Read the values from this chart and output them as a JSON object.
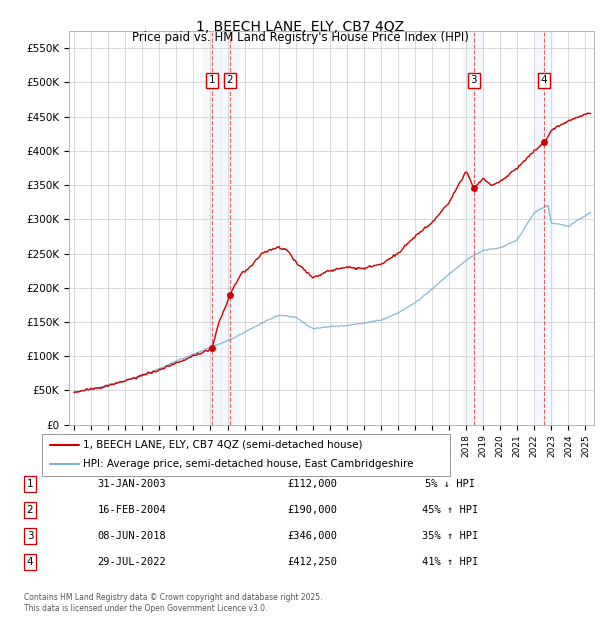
{
  "title": "1, BEECH LANE, ELY, CB7 4QZ",
  "subtitle": "Price paid vs. HM Land Registry's House Price Index (HPI)",
  "ylim": [
    0,
    575000
  ],
  "xlim_start": 1994.7,
  "xlim_end": 2025.5,
  "yticks": [
    0,
    50000,
    100000,
    150000,
    200000,
    250000,
    300000,
    350000,
    400000,
    450000,
    500000,
    550000
  ],
  "ytick_labels": [
    "£0",
    "£50K",
    "£100K",
    "£150K",
    "£200K",
    "£250K",
    "£300K",
    "£350K",
    "£400K",
    "£450K",
    "£500K",
    "£550K"
  ],
  "property_color": "#cc0000",
  "hpi_color": "#7ab0d4",
  "background_color": "#ffffff",
  "grid_color": "#cccccc",
  "sale_markers": [
    {
      "num": 1,
      "date_dec": 2003.08,
      "price": 112000,
      "label": "1"
    },
    {
      "num": 2,
      "date_dec": 2004.13,
      "price": 190000,
      "label": "2"
    },
    {
      "num": 3,
      "date_dec": 2018.44,
      "price": 346000,
      "label": "3"
    },
    {
      "num": 4,
      "date_dec": 2022.57,
      "price": 412250,
      "label": "4"
    }
  ],
  "hpi_ctrl_x": [
    1995,
    1996,
    1997,
    1998,
    1999,
    2000,
    2001,
    2002,
    2003,
    2004,
    2005,
    2006,
    2007,
    2008,
    2009,
    2010,
    2011,
    2012,
    2013,
    2014,
    2015,
    2016,
    2017,
    2018,
    2019,
    2020,
    2021,
    2022,
    2022.8,
    2023,
    2024,
    2025.3
  ],
  "hpi_ctrl_y": [
    48000,
    52000,
    57000,
    64000,
    72000,
    82000,
    93000,
    103000,
    113000,
    122000,
    135000,
    148000,
    160000,
    157000,
    140000,
    143000,
    145000,
    148000,
    153000,
    163000,
    178000,
    198000,
    220000,
    240000,
    255000,
    258000,
    270000,
    310000,
    320000,
    295000,
    290000,
    310000
  ],
  "prop_ctrl_x": [
    1995,
    1996,
    1997,
    1998,
    1999,
    2000,
    2001,
    2002,
    2003.08,
    2003.5,
    2004.0,
    2004.13,
    2004.8,
    2005.5,
    2006,
    2007,
    2007.5,
    2008,
    2009,
    2010,
    2011,
    2012,
    2013,
    2014,
    2015,
    2016,
    2017,
    2018,
    2018.44,
    2018.8,
    2019,
    2019.5,
    2020,
    2021,
    2022,
    2022.57,
    2023,
    2024,
    2025.3
  ],
  "prop_ctrl_y": [
    48000,
    52000,
    57000,
    64000,
    72000,
    80000,
    90000,
    100000,
    112000,
    150000,
    180000,
    190000,
    220000,
    235000,
    250000,
    260000,
    255000,
    238000,
    215000,
    225000,
    230000,
    228000,
    235000,
    250000,
    275000,
    295000,
    325000,
    370000,
    346000,
    355000,
    360000,
    350000,
    355000,
    375000,
    400000,
    412250,
    430000,
    445000,
    455000
  ],
  "legend_entries": [
    {
      "label": "1, BEECH LANE, ELY, CB7 4QZ (semi-detached house)",
      "color": "#cc0000"
    },
    {
      "label": "HPI: Average price, semi-detached house, East Cambridgeshire",
      "color": "#7ab0d4"
    }
  ],
  "table_rows": [
    {
      "num": "1",
      "date": "31-JAN-2003",
      "price": "£112,000",
      "hpi": "5% ↓ HPI"
    },
    {
      "num": "2",
      "date": "16-FEB-2004",
      "price": "£190,000",
      "hpi": "45% ↑ HPI"
    },
    {
      "num": "3",
      "date": "08-JUN-2018",
      "price": "£346,000",
      "hpi": "35% ↑ HPI"
    },
    {
      "num": "4",
      "date": "29-JUL-2022",
      "price": "£412,250",
      "hpi": "41% ↑ HPI"
    }
  ],
  "footer": "Contains HM Land Registry data © Crown copyright and database right 2025.\nThis data is licensed under the Open Government Licence v3.0."
}
